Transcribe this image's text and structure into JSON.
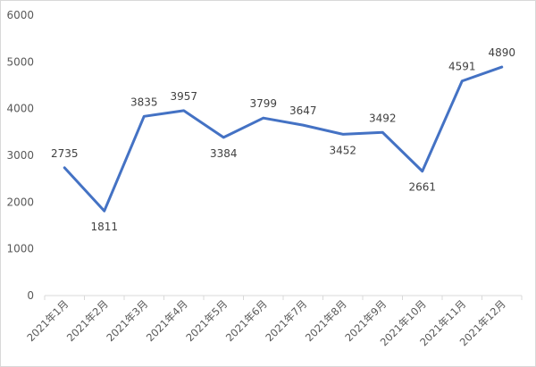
{
  "chart_data": {
    "type": "line",
    "title": "",
    "xlabel": "",
    "ylabel": "",
    "categories": [
      "2021年1月",
      "2021年2月",
      "2021年3月",
      "2021年4月",
      "2021年5月",
      "2021年6月",
      "2021年7月",
      "2021年8月",
      "2021年9月",
      "2021年10月",
      "2021年11月",
      "2021年12月"
    ],
    "series": [
      {
        "values": [
          2735,
          1811,
          3835,
          3957,
          3384,
          3799,
          3647,
          3452,
          3492,
          2661,
          4591,
          4890
        ],
        "color": "#4472c4"
      }
    ],
    "ylim": [
      0,
      6000
    ],
    "yticks": [
      0,
      1000,
      2000,
      3000,
      4000,
      5000,
      6000
    ],
    "grid": false,
    "legend": "none",
    "data_labels": true
  },
  "colors": {
    "line": "#4472c4",
    "axis": "#d9d9d9",
    "text": "#595959"
  }
}
